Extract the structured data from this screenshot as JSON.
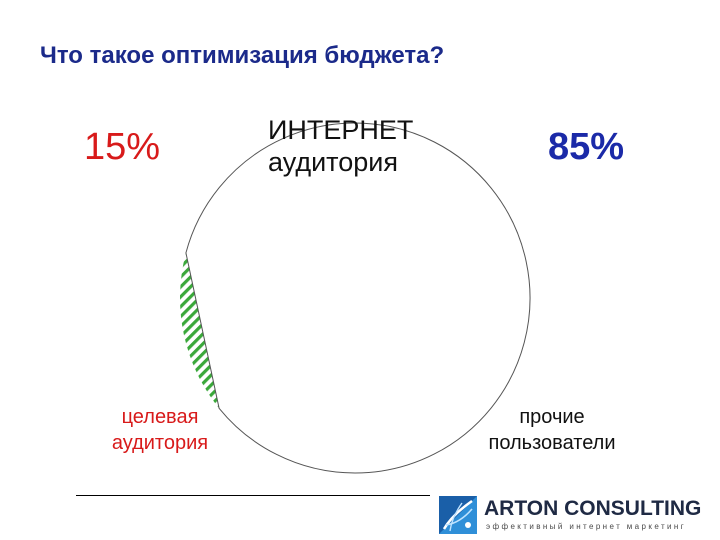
{
  "slide": {
    "title": "Что такое оптимизация бюджета?",
    "percent_left": "15%",
    "percent_right": "85%",
    "center_label_line1": "ИНТЕРНЕТ",
    "center_label_line2": "аудитория",
    "left_label_line1": "целевая",
    "left_label_line2": "аудитория",
    "right_label_line1": "прочие",
    "right_label_line2": "пользователи"
  },
  "logo": {
    "name": "ARTON CONSULTING",
    "tagline": "эффективный интернет маркетинг"
  },
  "chart_data": {
    "type": "pie",
    "categories": [
      "целевая аудитория",
      "прочие пользователи"
    ],
    "values": [
      15,
      85
    ],
    "colors": [
      "#3aa83a",
      "#ffffff"
    ],
    "pattern": [
      "diagonal-stripes",
      "none"
    ]
  }
}
